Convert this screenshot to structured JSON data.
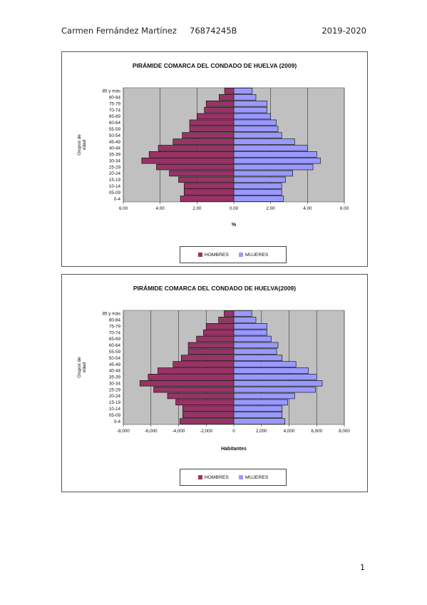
{
  "header": {
    "author": "Carmen Fernández Martínez",
    "id": "76874245B",
    "year": "2019-2020"
  },
  "footer": {
    "page_number": "1"
  },
  "colors": {
    "hombres": "#993366",
    "mujeres": "#9999ff",
    "plot_bg": "#c0c0c0"
  },
  "chart_data": [
    {
      "type": "bar",
      "orientation": "horizontal-population-pyramid",
      "title": "PIRÁMIDE COMARCA DEL CONDADO DE HUELVA  (2009)",
      "ylabel": "Grupos de edad",
      "xlabel": "%",
      "xlim": [
        -6,
        6
      ],
      "xticks": [
        "6.00",
        "4.00",
        "2.00",
        "0.00",
        "2.00",
        "4.00",
        "6.00"
      ],
      "categories": [
        "0-4",
        "05-09",
        "10-14",
        "15-19",
        "20-24",
        "25-29",
        "30-34",
        "35-39",
        "40-44",
        "45-49",
        "50-54",
        "55-59",
        "60-64",
        "65-69",
        "70-74",
        "75-79",
        "80-84",
        "85 y más"
      ],
      "series": [
        {
          "name": "HOMBRES",
          "values": [
            2.9,
            2.7,
            2.7,
            3.0,
            3.5,
            4.2,
            5.0,
            4.6,
            4.1,
            3.3,
            2.8,
            2.4,
            2.4,
            2.0,
            1.6,
            1.5,
            0.8,
            0.5
          ]
        },
        {
          "name": "MUJERES",
          "values": [
            2.7,
            2.6,
            2.6,
            2.8,
            3.2,
            4.3,
            4.7,
            4.5,
            4.0,
            3.3,
            2.6,
            2.4,
            2.3,
            2.0,
            1.8,
            1.8,
            1.2,
            1.0
          ]
        }
      ],
      "legend_position": "bottom",
      "grid": true
    },
    {
      "type": "bar",
      "orientation": "horizontal-population-pyramid",
      "title": "PIRÁMIDE COMARCA DEL CONDADO DE HUELVA(2009)",
      "ylabel": "Grupos de edad",
      "xlabel": "Habitantes",
      "xlim": [
        -8000,
        8000
      ],
      "xticks": [
        "-8,000",
        "-6,000",
        "-4,000",
        "-2,000",
        "0",
        "2,000",
        "4,000",
        "6,000",
        "8,000"
      ],
      "categories": [
        "0-4",
        "05-09",
        "10-14",
        "15-19",
        "20-24",
        "25-29",
        "30-34",
        "35-39",
        "40-44",
        "45-49",
        "50-54",
        "55-59",
        "60-64",
        "65-69",
        "70-74",
        "75-79",
        "80-84",
        "85 y más"
      ],
      "series": [
        {
          "name": "HOMBRES",
          "values": [
            3900,
            3700,
            3700,
            4200,
            4800,
            5800,
            6800,
            6200,
            5500,
            4400,
            3800,
            3300,
            3300,
            2700,
            2200,
            2000,
            1100,
            700
          ]
        },
        {
          "name": "MUJERES",
          "values": [
            3700,
            3500,
            3500,
            3900,
            4400,
            5900,
            6400,
            6000,
            5400,
            4500,
            3500,
            3100,
            3200,
            2700,
            2400,
            2400,
            1600,
            1300
          ]
        }
      ],
      "legend_position": "bottom",
      "grid": true
    }
  ]
}
